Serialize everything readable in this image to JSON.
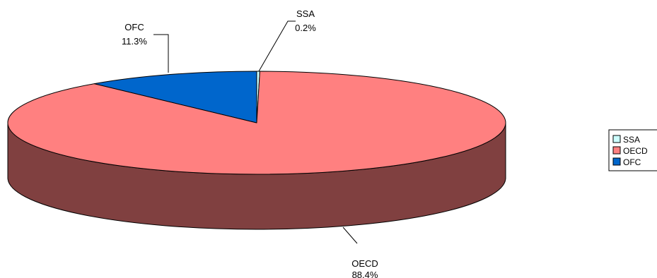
{
  "chart_data": {
    "type": "pie",
    "style": "3d",
    "slices": [
      {
        "label": "SSA",
        "value": 0.2,
        "value_label": "0.2%",
        "color": "#ccffff"
      },
      {
        "label": "OECD",
        "value": 88.4,
        "value_label": "88.4%",
        "color": "#ff8080"
      },
      {
        "label": "OFC",
        "value": 11.3,
        "value_label": "11.3%",
        "color": "#0066cc"
      }
    ],
    "side_colors": {
      "SSA": "#99cccc",
      "OECD": "#804040",
      "OFC": "#003366"
    },
    "legend": {
      "placement": "right",
      "entries": [
        "SSA",
        "OECD",
        "OFC"
      ]
    },
    "title": ""
  }
}
